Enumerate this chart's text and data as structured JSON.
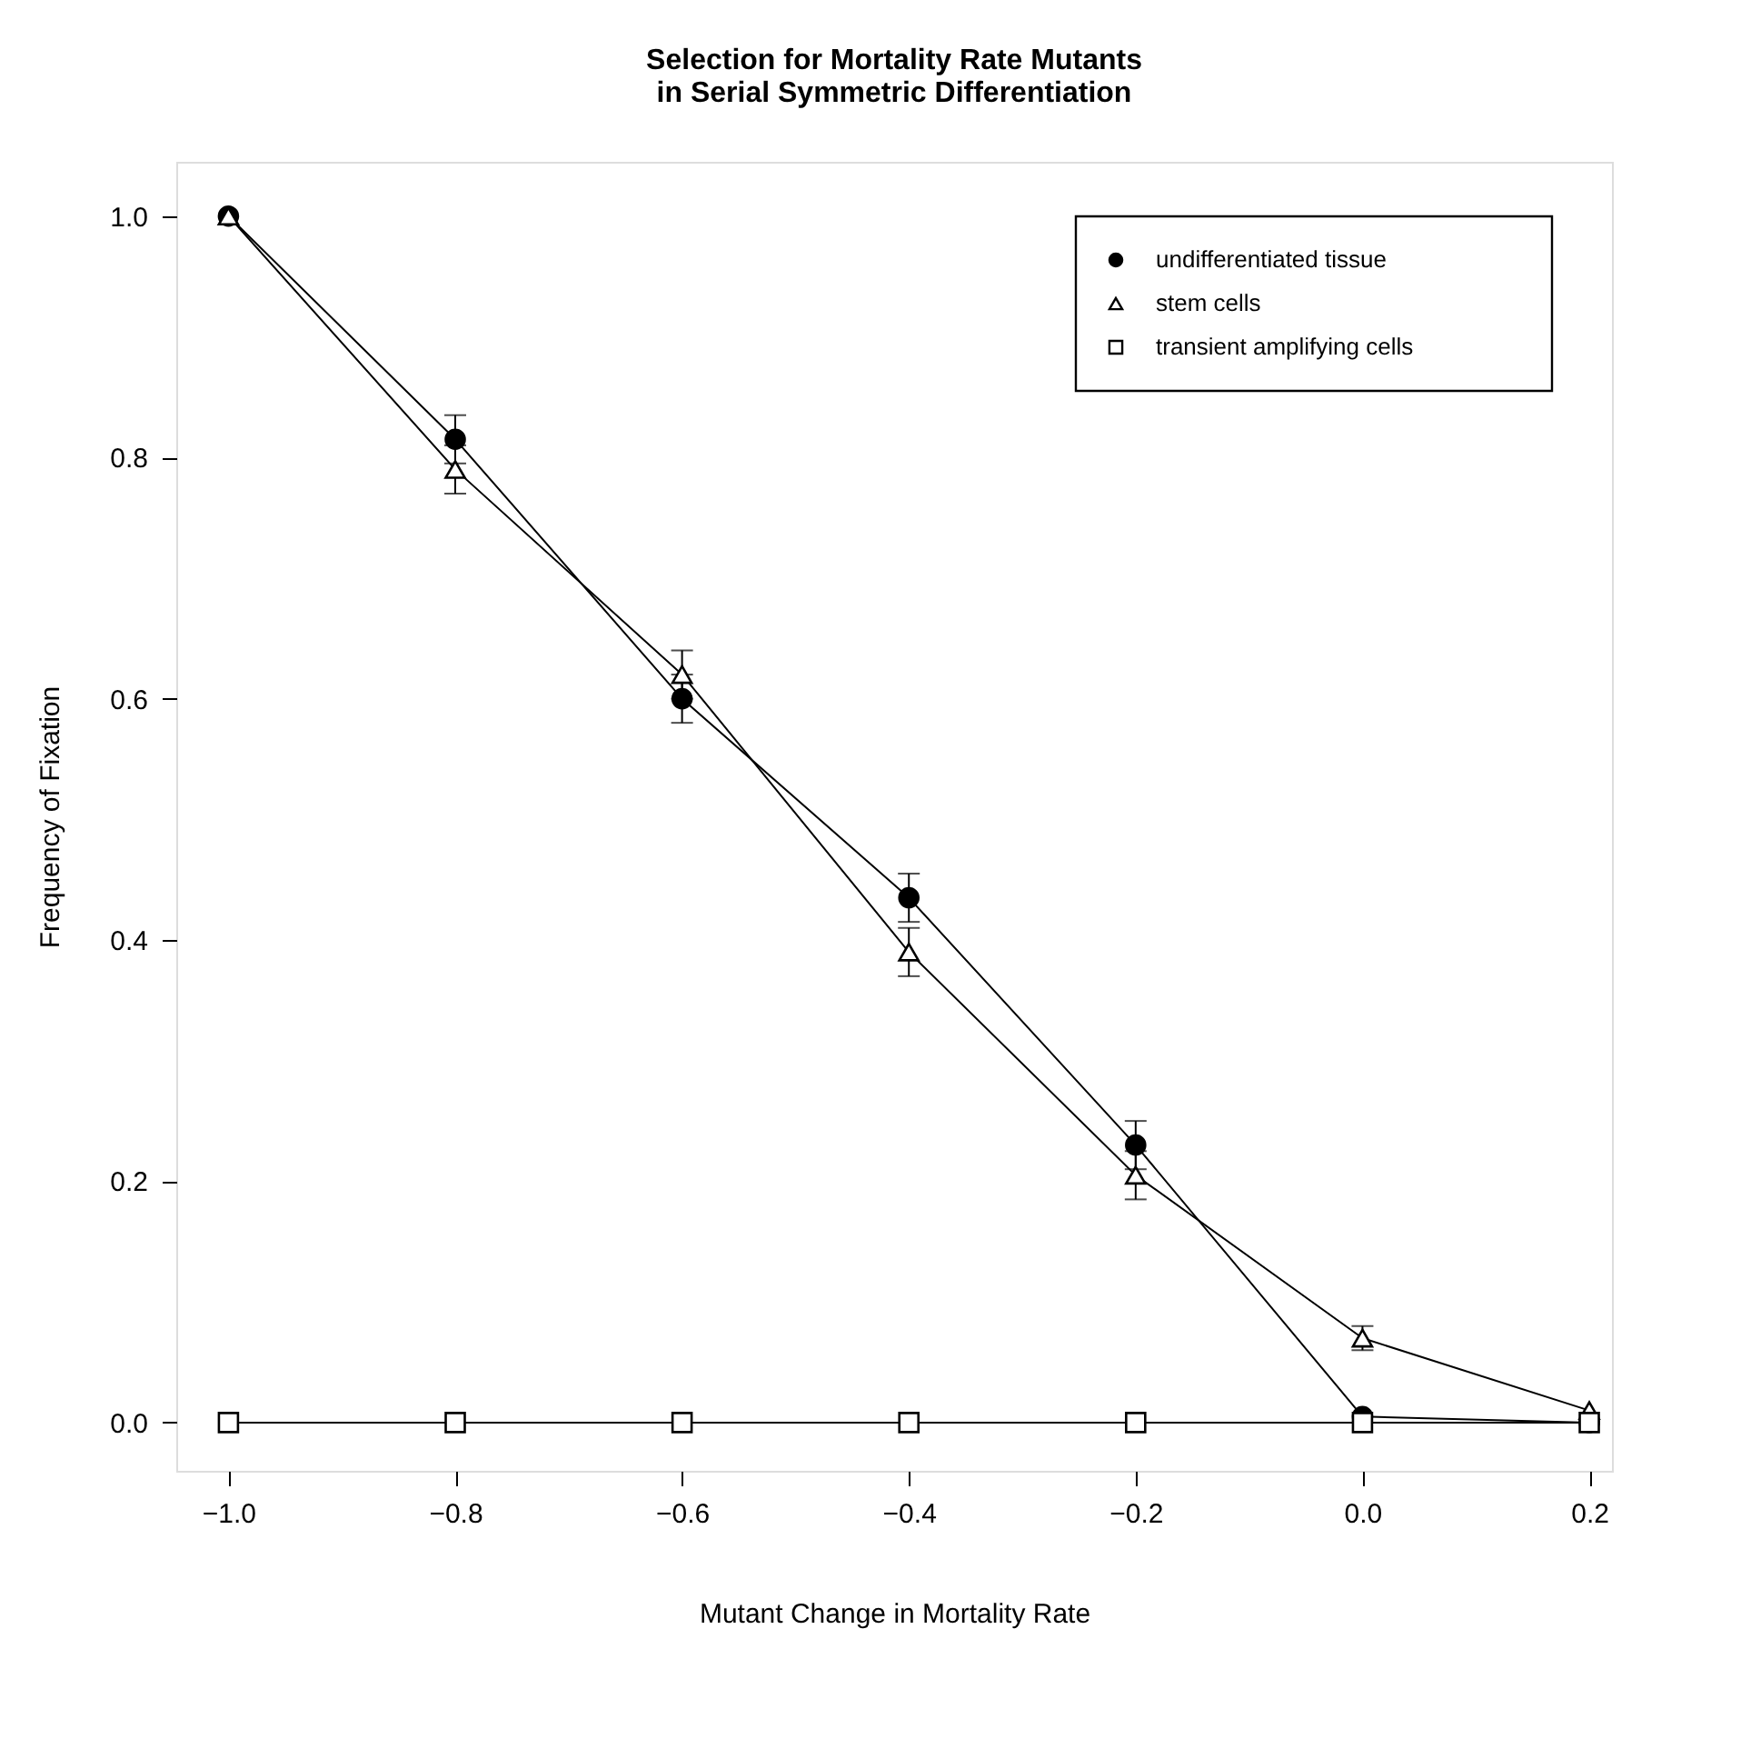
{
  "chart_data": {
    "type": "line",
    "title": [
      "Selection for Mortality Rate Mutants",
      "in Serial Symmetric Differentiation"
    ],
    "xlabel": "Mutant Change in Mortality Rate",
    "ylabel": "Frequency of Fixation",
    "x": [
      -1.0,
      -0.8,
      -0.6,
      -0.4,
      -0.2,
      0.0,
      0.2
    ],
    "series": [
      {
        "name": "undifferentiated tissue",
        "color": "#000000",
        "marker": "circle",
        "values": [
          1.0,
          0.815,
          0.6,
          0.435,
          0.23,
          0.005,
          0.0
        ],
        "errors": [
          null,
          0.02,
          0.02,
          0.02,
          0.02,
          null,
          null
        ]
      },
      {
        "name": "stem cells",
        "color": "#000000",
        "marker": "triangle",
        "values": [
          1.0,
          0.79,
          0.62,
          0.39,
          0.205,
          0.07,
          0.01
        ],
        "errors": [
          null,
          0.02,
          0.02,
          0.02,
          0.02,
          0.01,
          null
        ]
      },
      {
        "name": "transient amplifying cells",
        "color": "#000000",
        "marker": "square",
        "values": [
          0.0,
          0.0,
          0.0,
          0.0,
          0.0,
          0.0,
          0.0
        ]
      }
    ],
    "xlim": [
      -1.046,
      0.22
    ],
    "xticks": [
      {
        "value": -1.0,
        "label": "−1.0"
      },
      -0.8,
      -0.6,
      -0.4,
      -0.2,
      {
        "value": 0.0,
        "label": "0.0"
      },
      0.2
    ],
    "ylim": [
      -0.04,
      1.045
    ],
    "yticks": [
      {
        "value": 0.0,
        "label": "0.0"
      },
      0.2,
      0.4,
      0.6,
      0.8,
      {
        "value": 1.0,
        "label": "1.0"
      }
    ],
    "grid": false,
    "legend": "top right"
  }
}
